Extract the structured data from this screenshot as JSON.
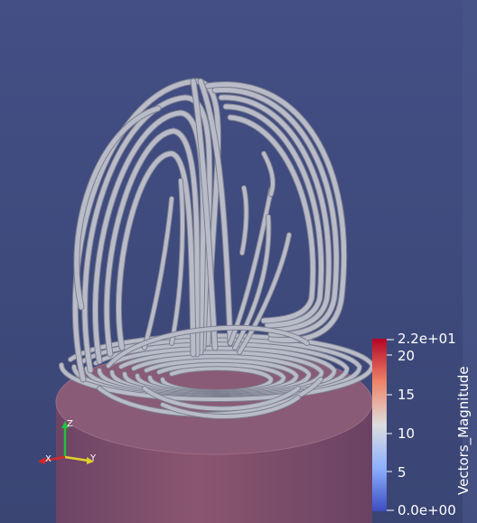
{
  "scalar_bar": {
    "title": "Vectors_Magnitude",
    "max_label": "2.2e+01",
    "min_label": "0.0e+00",
    "tick_labels": [
      "20",
      "15",
      "10",
      "5"
    ],
    "range": [
      0,
      22
    ],
    "colors": {
      "low": "#3b4cc0",
      "mid": "#dddddd",
      "high": "#b40426"
    }
  },
  "axes_widget": {
    "x_label": "X",
    "y_label": "Y",
    "z_label": "Z"
  },
  "colors": {
    "background_top": "#414d82",
    "background_bottom": "#3a4676",
    "tube": "#b9bcc8",
    "cylinder": "#7a4a6a"
  }
}
